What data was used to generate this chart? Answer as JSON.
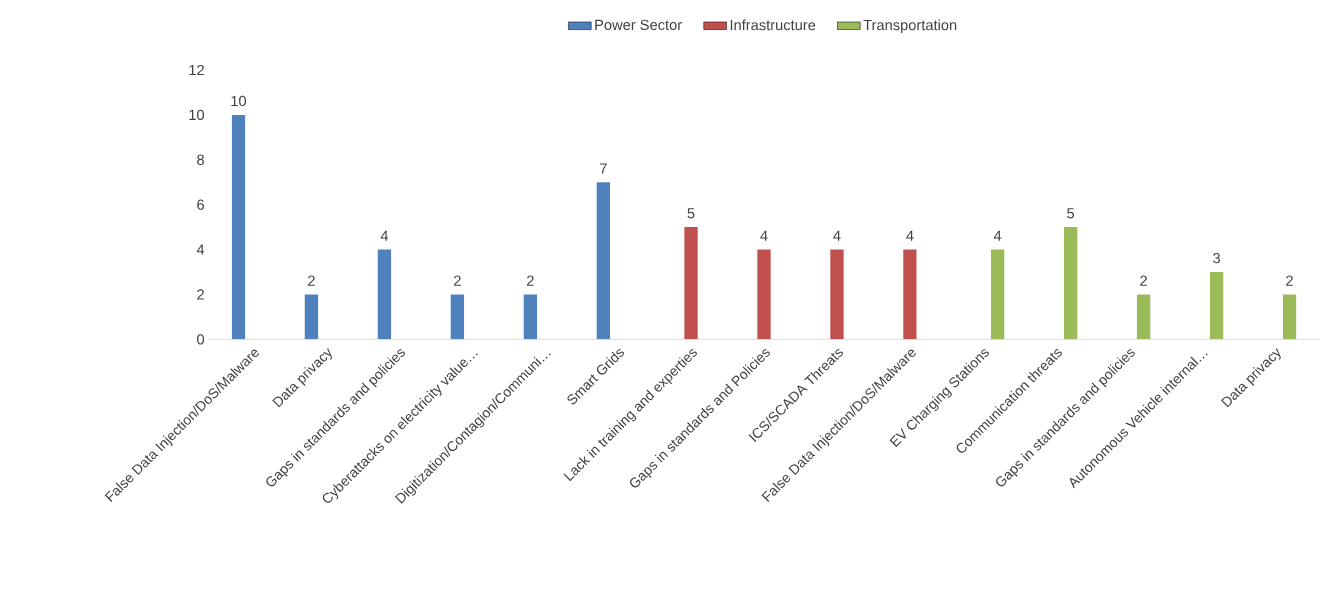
{
  "chart_data": {
    "type": "bar",
    "categories": [
      "False Data Injection/DoS/Malware",
      "Data privacy",
      "Gaps in standards and policies",
      "Cyberattacks on electricity value…",
      "Digitization/Contagion/Communi…",
      "Smart Grids",
      "Lack in training and experties",
      "Gaps in standards and Policies",
      "ICS/SCADA Threats",
      "False Data Injection/DoS/Malware",
      "EV Charging Stations",
      "Communication threats",
      "Gaps in standards and policies",
      "Autonomous Vehicle internal…",
      "Data privacy"
    ],
    "series": [
      {
        "name": "Power Sector",
        "color": "#4f81bd",
        "values": [
          10,
          2,
          4,
          2,
          2,
          7,
          null,
          null,
          null,
          null,
          null,
          null,
          null,
          null,
          null
        ]
      },
      {
        "name": "Infrastructure",
        "color": "#c0504d",
        "values": [
          null,
          null,
          null,
          null,
          null,
          null,
          5,
          4,
          4,
          4,
          null,
          null,
          null,
          null,
          null
        ]
      },
      {
        "name": "Transportation",
        "color": "#9bbb59",
        "values": [
          null,
          null,
          null,
          null,
          null,
          null,
          null,
          null,
          null,
          null,
          4,
          5,
          2,
          3,
          2
        ]
      }
    ],
    "ylim": [
      0,
      12
    ],
    "yticks": [
      0,
      2,
      4,
      6,
      8,
      10,
      12
    ],
    "data_labels": true,
    "legend": "top",
    "grid": false
  }
}
